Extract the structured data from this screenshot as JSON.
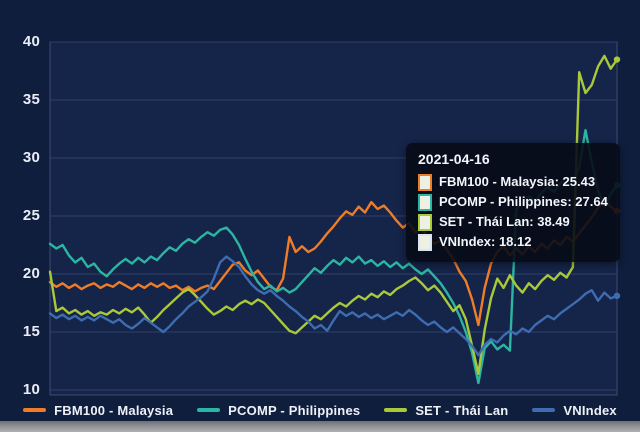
{
  "axis": {
    "yticks": [
      40,
      35,
      30,
      25,
      20,
      15,
      10
    ]
  },
  "colors": {
    "background": "#0f1e3d",
    "plot_background": "#152449",
    "gridline": "#2e4166",
    "plot_border": "#3a4d73",
    "text": "#eef2f8",
    "tooltip_background": "rgba(7,11,22,0.9)",
    "tooltip_swatch_fill": "#ecf1e4",
    "fbm100": "#ef7d28",
    "pcomp": "#2cb5a2",
    "set": "#a9c938",
    "vnindex": "#3e6cb0"
  },
  "tooltip": {
    "date": "2021-04-16",
    "rows": [
      {
        "label": "FBM100 - Malaysia",
        "value": "25.43",
        "swatch": "#ef7d28"
      },
      {
        "label": "PCOMP - Philippines",
        "value": "27.64",
        "swatch": "#2cb5a2"
      },
      {
        "label": "SET - Thái Lan",
        "value": "38.49",
        "swatch": "#a9c938"
      },
      {
        "label": "VNIndex",
        "value": "18.12",
        "swatch": "#dbe4f2"
      }
    ]
  },
  "legend": [
    {
      "label": "FBM100 - Malaysia",
      "color": "#ef7d28"
    },
    {
      "label": "PCOMP - Philippines",
      "color": "#2cb5a2"
    },
    {
      "label": "SET - Thái Lan",
      "color": "#a9c938"
    },
    {
      "label": "VNIndex",
      "color": "#3e6cb0"
    }
  ],
  "chart_data": {
    "type": "line",
    "title": "",
    "xlabel": "",
    "ylabel": "",
    "ylim": [
      10,
      40
    ],
    "yticks": [
      10,
      15,
      20,
      25,
      30,
      35,
      40
    ],
    "grid": "horizontal-only",
    "legend_position": "bottom",
    "tooltip_date": "2021-04-16",
    "series": [
      {
        "name": "FBM100 - Malaysia",
        "color": "#ef7d28",
        "end_value": 25.43,
        "values": [
          19.3,
          18.9,
          19.2,
          18.8,
          19.1,
          18.7,
          19.0,
          19.2,
          18.8,
          19.1,
          18.9,
          19.3,
          19.0,
          18.7,
          19.1,
          18.8,
          19.2,
          18.9,
          19.2,
          18.8,
          19.0,
          18.6,
          18.9,
          18.5,
          18.8,
          19.0,
          18.7,
          19.4,
          20.1,
          20.8,
          21.0,
          20.3,
          19.9,
          20.3,
          19.6,
          18.9,
          18.6,
          19.6,
          23.2,
          21.9,
          22.4,
          21.9,
          22.2,
          22.8,
          23.5,
          24.1,
          24.8,
          25.4,
          25.1,
          25.8,
          25.3,
          26.2,
          25.6,
          25.9,
          25.3,
          24.6,
          24.0,
          24.4,
          23.6,
          23.9,
          23.2,
          22.6,
          22.9,
          22.1,
          21.3,
          20.2,
          19.4,
          17.8,
          15.6,
          18.8,
          20.9,
          21.9,
          22.4,
          21.6,
          22.2,
          21.7,
          22.4,
          21.9,
          22.6,
          22.2,
          22.9,
          22.5,
          23.2,
          22.8,
          23.5,
          24.2,
          24.9,
          25.7,
          26.4,
          25.8,
          25.43
        ]
      },
      {
        "name": "PCOMP - Philippines",
        "color": "#2cb5a2",
        "end_value": 27.64,
        "values": [
          22.6,
          22.2,
          22.5,
          21.6,
          21.0,
          21.4,
          20.6,
          20.9,
          20.2,
          19.8,
          20.4,
          20.9,
          21.3,
          20.9,
          21.4,
          21.0,
          21.5,
          21.2,
          21.8,
          22.3,
          22.0,
          22.6,
          23.0,
          22.7,
          23.2,
          23.6,
          23.3,
          23.8,
          24.0,
          23.4,
          22.5,
          21.3,
          20.2,
          19.3,
          18.7,
          19.0,
          18.5,
          18.8,
          18.4,
          18.7,
          19.3,
          19.9,
          20.5,
          20.1,
          20.7,
          21.2,
          20.8,
          21.4,
          21.0,
          21.5,
          20.9,
          21.2,
          20.7,
          21.1,
          20.6,
          21.0,
          20.5,
          20.9,
          20.4,
          20.0,
          20.4,
          19.8,
          19.2,
          18.4,
          17.5,
          16.4,
          15.0,
          13.2,
          10.6,
          13.6,
          14.2,
          13.5,
          13.9,
          13.4,
          25.6,
          26.1,
          26.7,
          26.3,
          27.0,
          27.5,
          27.1,
          27.8,
          28.3,
          28.0,
          29.2,
          32.4,
          29.6,
          27.2,
          25.9,
          26.9,
          27.64
        ]
      },
      {
        "name": "SET - Thái Lan",
        "color": "#a9c938",
        "end_value": 38.49,
        "values": [
          20.2,
          16.8,
          17.1,
          16.6,
          16.9,
          16.5,
          16.8,
          16.4,
          16.7,
          16.5,
          16.9,
          16.6,
          17.0,
          16.7,
          17.1,
          16.5,
          15.8,
          16.3,
          16.9,
          17.4,
          17.9,
          18.4,
          18.7,
          18.2,
          17.6,
          17.0,
          16.5,
          16.8,
          17.2,
          16.9,
          17.4,
          17.7,
          17.4,
          17.8,
          17.5,
          16.9,
          16.3,
          15.7,
          15.1,
          14.9,
          15.4,
          15.9,
          16.4,
          16.1,
          16.6,
          17.1,
          17.5,
          17.2,
          17.7,
          18.1,
          17.8,
          18.3,
          18.0,
          18.5,
          18.2,
          18.7,
          19.0,
          19.4,
          19.7,
          19.2,
          18.6,
          19.0,
          18.4,
          17.6,
          16.8,
          17.3,
          16.1,
          13.8,
          11.4,
          15.2,
          17.9,
          19.6,
          18.8,
          19.9,
          19.0,
          18.4,
          19.2,
          18.7,
          19.4,
          19.9,
          19.5,
          20.1,
          19.7,
          20.6,
          37.4,
          35.6,
          36.3,
          37.9,
          38.8,
          37.7,
          38.49
        ]
      },
      {
        "name": "VNIndex",
        "color": "#3e6cb0",
        "end_value": 18.12,
        "values": [
          16.6,
          16.2,
          16.5,
          16.1,
          16.4,
          16.0,
          16.3,
          16.0,
          16.4,
          16.1,
          15.8,
          16.1,
          15.6,
          15.3,
          15.7,
          16.2,
          15.8,
          15.4,
          15.0,
          15.5,
          16.1,
          16.6,
          17.2,
          17.6,
          18.0,
          18.5,
          19.6,
          21.0,
          21.5,
          21.1,
          20.6,
          19.8,
          19.1,
          18.6,
          18.3,
          18.6,
          18.1,
          17.7,
          17.2,
          16.8,
          16.3,
          15.9,
          15.3,
          15.6,
          15.1,
          16.0,
          16.8,
          16.4,
          16.7,
          16.3,
          16.6,
          16.2,
          16.5,
          16.1,
          16.4,
          16.7,
          16.4,
          16.9,
          16.5,
          16.0,
          15.6,
          15.9,
          15.4,
          15.0,
          15.4,
          14.9,
          14.4,
          13.8,
          13.0,
          13.9,
          14.4,
          14.1,
          14.7,
          15.1,
          14.8,
          15.3,
          15.0,
          15.6,
          16.0,
          16.4,
          16.1,
          16.6,
          17.0,
          17.4,
          17.8,
          18.3,
          18.6,
          17.7,
          18.4,
          17.9,
          18.12
        ]
      }
    ]
  }
}
